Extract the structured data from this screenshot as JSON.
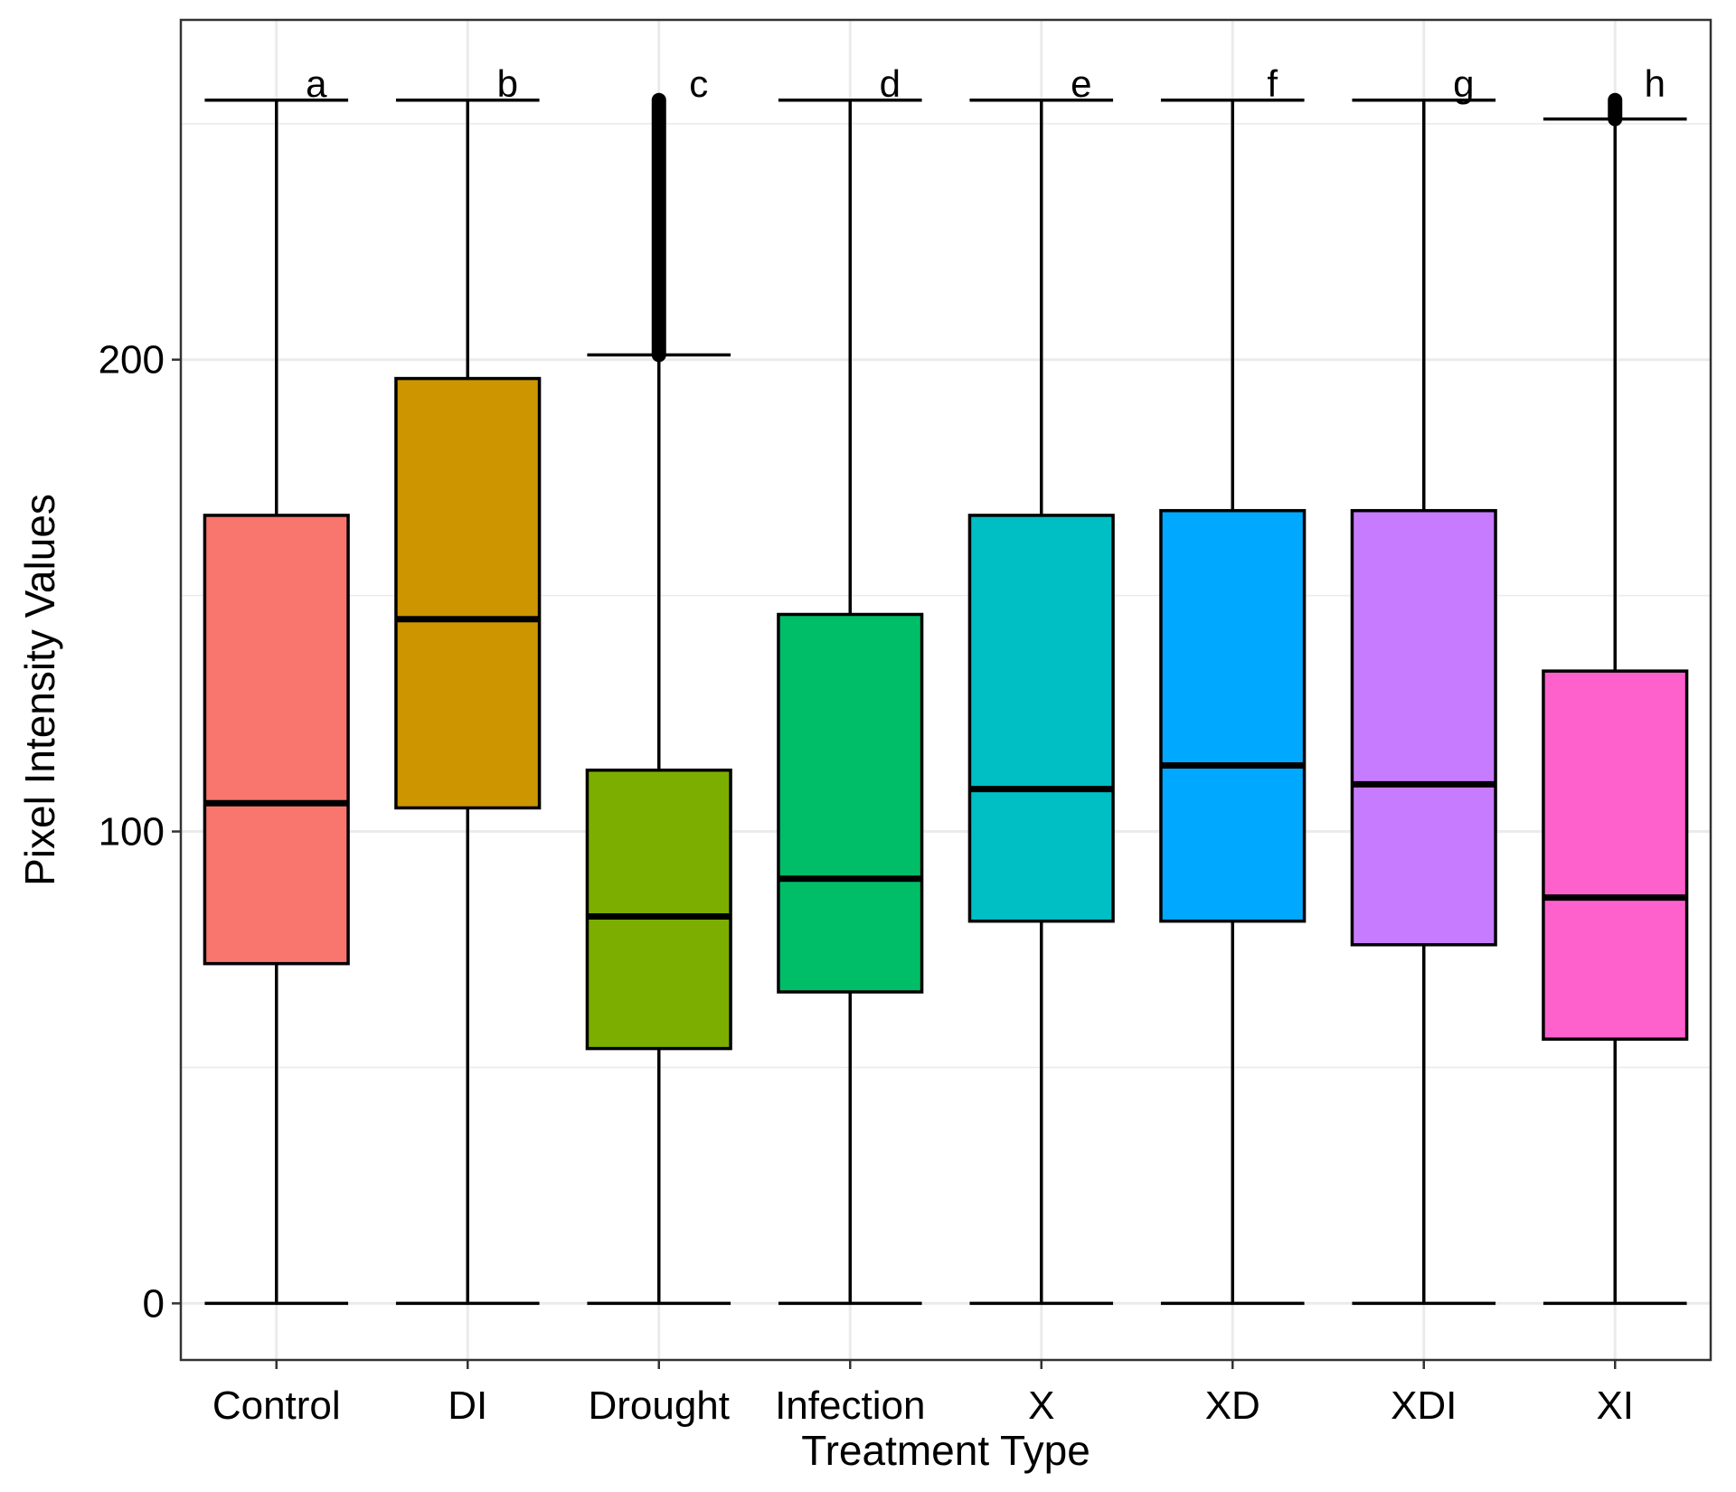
{
  "chart_data": {
    "type": "boxplot",
    "xlabel": "Treatment Type",
    "ylabel": "Pixel Intensity Values",
    "ylim": [
      -12,
      272
    ],
    "yticks": [
      0,
      100,
      200
    ],
    "grid": true,
    "legend": "none",
    "categories": [
      "Control",
      "DI",
      "Drought",
      "Infection",
      "X",
      "XD",
      "XDI",
      "XI"
    ],
    "boxes": [
      {
        "category": "Control",
        "label": "a",
        "min": 0,
        "q1": 72,
        "median": 106,
        "q3": 167,
        "max": 255,
        "color": "#F8766D",
        "outliers_from": null
      },
      {
        "category": "DI",
        "label": "b",
        "min": 0,
        "q1": 105,
        "median": 145,
        "q3": 196,
        "max": 255,
        "color": "#CD9600",
        "outliers_from": null
      },
      {
        "category": "Drought",
        "label": "c",
        "min": 0,
        "q1": 54,
        "median": 82,
        "q3": 113,
        "max": 201,
        "color": "#7CAE00",
        "outliers_from": 201
      },
      {
        "category": "Infection",
        "label": "d",
        "min": 0,
        "q1": 66,
        "median": 90,
        "q3": 146,
        "max": 255,
        "color": "#00BE67",
        "outliers_from": null
      },
      {
        "category": "X",
        "label": "e",
        "min": 0,
        "q1": 81,
        "median": 109,
        "q3": 167,
        "max": 255,
        "color": "#00BFC4",
        "outliers_from": null
      },
      {
        "category": "XD",
        "label": "f",
        "min": 0,
        "q1": 81,
        "median": 114,
        "q3": 168,
        "max": 255,
        "color": "#00A9FF",
        "outliers_from": null
      },
      {
        "category": "XDI",
        "label": "g",
        "min": 0,
        "q1": 76,
        "median": 110,
        "q3": 168,
        "max": 255,
        "color": "#C77CFF",
        "outliers_from": null
      },
      {
        "category": "XI",
        "label": "h",
        "min": 0,
        "q1": 56,
        "median": 86,
        "q3": 134,
        "max": 251,
        "color": "#FF61CC",
        "outliers_from": 251
      }
    ]
  }
}
